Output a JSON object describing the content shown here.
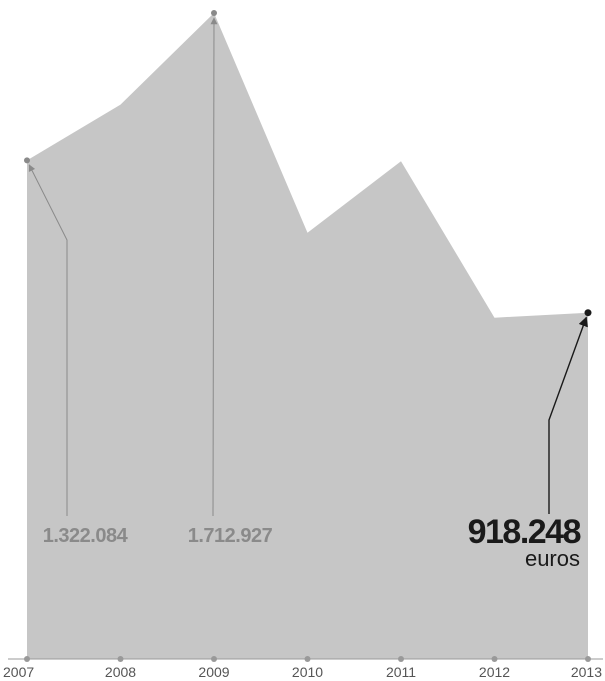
{
  "colors": {
    "area": "#c6c6c6",
    "annotation": "#8a8a8a",
    "highlight": "#1a1a1a",
    "axis": "#999999"
  },
  "chart_data": {
    "type": "area",
    "x": [
      "2007",
      "2008",
      "2009",
      "2010",
      "2011",
      "2012",
      "2013"
    ],
    "values": [
      1322084,
      1470000,
      1712927,
      1130000,
      1320000,
      905000,
      918248
    ],
    "ylim": [
      0,
      1712927
    ],
    "grid": false,
    "annotations": [
      {
        "index": 0,
        "value_label": "1.322.084",
        "unit": "",
        "style": "muted"
      },
      {
        "index": 2,
        "value_label": "1.712.927",
        "unit": "",
        "style": "muted"
      },
      {
        "index": 6,
        "value_label": "918.248",
        "unit": "euros",
        "style": "highlight"
      }
    ]
  }
}
